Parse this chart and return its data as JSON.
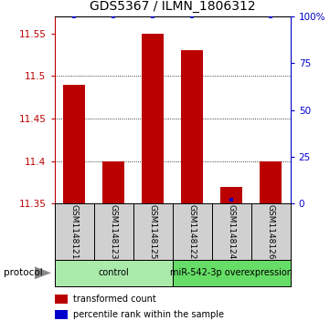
{
  "title": "GDS5367 / ILMN_1806312",
  "samples": [
    "GSM1148121",
    "GSM1148123",
    "GSM1148125",
    "GSM1148122",
    "GSM1148124",
    "GSM1148126"
  ],
  "red_values": [
    11.49,
    11.4,
    11.55,
    11.53,
    11.37,
    11.4
  ],
  "blue_values": [
    100,
    100,
    100,
    100,
    2,
    100
  ],
  "ylim_left": [
    11.35,
    11.57
  ],
  "ylim_right": [
    0,
    100
  ],
  "yticks_left": [
    11.35,
    11.4,
    11.45,
    11.5,
    11.55
  ],
  "yticks_right": [
    0,
    25,
    50,
    75,
    100
  ],
  "ytick_right_labels": [
    "0",
    "25",
    "50",
    "75",
    "100%"
  ],
  "baseline": 11.35,
  "groups": [
    {
      "label": "control",
      "start": 0,
      "end": 3,
      "color": "#aaeaaa"
    },
    {
      "label": "miR-542-3p overexpression",
      "start": 3,
      "end": 6,
      "color": "#66dd66"
    }
  ],
  "red_color": "#bb0000",
  "blue_color": "#0000cc",
  "bar_width": 0.55,
  "title_fontsize": 10,
  "tick_fontsize": 7.5,
  "sample_fontsize": 6.5,
  "group_label_fontsize": 7,
  "legend_fontsize": 7,
  "background_color": "#ffffff",
  "sample_box_color": "#d0d0d0",
  "protocol_arrow_color": "#888888"
}
